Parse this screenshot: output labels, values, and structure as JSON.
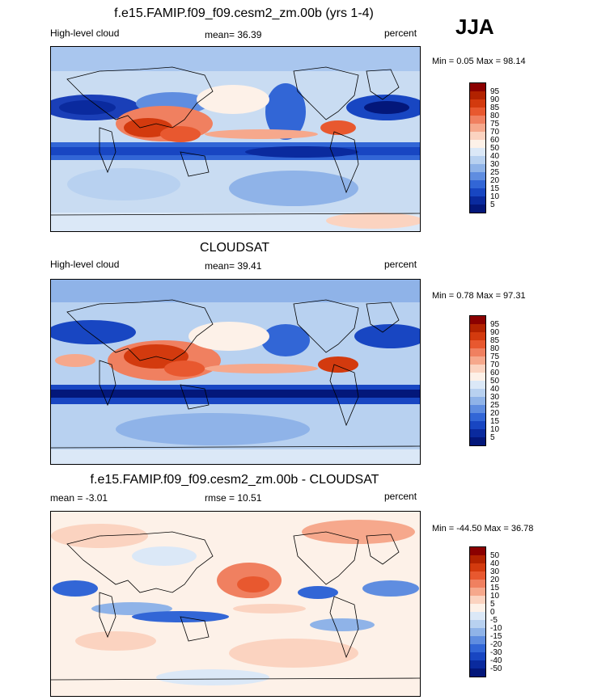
{
  "season": "JJA",
  "panels": [
    {
      "title": "f.e15.FAMIP.f09_f09.cesm2_zm.00b (yrs 1-4)",
      "left_label": "High-level cloud",
      "center_label": "mean=  36.39",
      "right_label": "percent",
      "minmax": "Min =   0.05 Max =  98.14",
      "colorbar_ticks": [
        "95",
        "90",
        "85",
        "80",
        "75",
        "70",
        "60",
        "50",
        "40",
        "30",
        "25",
        "20",
        "15",
        "10",
        "5"
      ],
      "colorbar_colors": [
        "#8b0000",
        "#b22200",
        "#d33a0e",
        "#e8582f",
        "#f08060",
        "#f6a88c",
        "#fbd3c0",
        "#fdf1e8",
        "#dbe8f7",
        "#b8d1f0",
        "#8fb3e8",
        "#5f8de0",
        "#3266d6",
        "#1846c2",
        "#0a2a9e",
        "#03177a"
      ]
    },
    {
      "title": "CLOUDSAT",
      "left_label": "High-level cloud",
      "center_label": "mean=  39.41",
      "right_label": "percent",
      "minmax": "Min =   0.78 Max =  97.31",
      "colorbar_ticks": [
        "95",
        "90",
        "85",
        "80",
        "75",
        "70",
        "60",
        "50",
        "40",
        "30",
        "25",
        "20",
        "15",
        "10",
        "5"
      ],
      "colorbar_colors": [
        "#8b0000",
        "#b22200",
        "#d33a0e",
        "#e8582f",
        "#f08060",
        "#f6a88c",
        "#fbd3c0",
        "#fdf1e8",
        "#dbe8f7",
        "#b8d1f0",
        "#8fb3e8",
        "#5f8de0",
        "#3266d6",
        "#1846c2",
        "#0a2a9e",
        "#03177a"
      ]
    },
    {
      "title": "f.e15.FAMIP.f09_f09.cesm2_zm.00b - CLOUDSAT",
      "left_label": "mean =  -3.01",
      "center_label": "rmse =  10.51",
      "right_label": "percent",
      "minmax": "Min = -44.50 Max =  36.78",
      "colorbar_ticks": [
        "50",
        "40",
        "30",
        "20",
        "15",
        "10",
        "5",
        "0",
        "-5",
        "-10",
        "-15",
        "-20",
        "-30",
        "-40",
        "-50"
      ],
      "colorbar_colors": [
        "#8b0000",
        "#b22200",
        "#d33a0e",
        "#e8582f",
        "#f08060",
        "#f6a88c",
        "#fbd3c0",
        "#fdf1e8",
        "#dbe8f7",
        "#b8d1f0",
        "#8fb3e8",
        "#5f8de0",
        "#3266d6",
        "#1846c2",
        "#0a2a9e",
        "#03177a"
      ]
    }
  ]
}
